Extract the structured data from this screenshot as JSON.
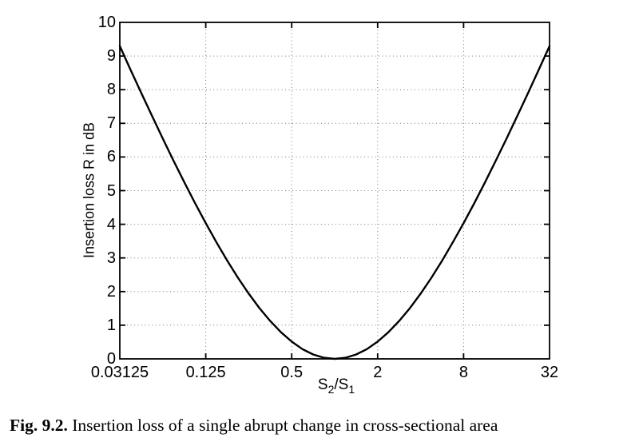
{
  "figure": {
    "caption": {
      "label": "Fig. 9.2.",
      "text": "Insertion loss of a single abrupt change in cross-sectional area"
    }
  },
  "chart_data": {
    "type": "line",
    "title": "",
    "xlabel": "S2/S1",
    "xlabel_parts": {
      "base1": "S",
      "sub1": "2",
      "base2": "/S",
      "sub2": "1"
    },
    "ylabel": "Insertion loss R in dB",
    "x_scale": "log",
    "xlim": [
      0.03125,
      32
    ],
    "ylim": [
      0,
      10
    ],
    "grid": "dotted",
    "x_ticks": [
      {
        "value": 0.03125,
        "label": "0.03125"
      },
      {
        "value": 0.125,
        "label": "0.125"
      },
      {
        "value": 0.5,
        "label": "0.5"
      },
      {
        "value": 2,
        "label": "2"
      },
      {
        "value": 8,
        "label": "8"
      },
      {
        "value": 32,
        "label": "32"
      }
    ],
    "y_ticks": [
      "0",
      "1",
      "2",
      "3",
      "4",
      "5",
      "6",
      "7",
      "8",
      "9",
      "10"
    ],
    "series": [
      {
        "name": "Insertion loss R",
        "color": "#000000",
        "x": [
          0.03125,
          0.03716,
          0.04419,
          0.05256,
          0.0625,
          0.07432,
          0.08839,
          0.10511,
          0.125,
          0.14865,
          0.17678,
          0.21022,
          0.25,
          0.2973,
          0.35355,
          0.42045,
          0.5,
          0.5946,
          0.70711,
          0.8409,
          1,
          1.18921,
          1.41421,
          1.68179,
          2,
          2.37841,
          2.82843,
          3.36359,
          4,
          4.75683,
          5.65685,
          6.72717,
          8,
          9.51366,
          11.31371,
          13.45434,
          16,
          19.02731,
          22.62742,
          26.90868,
          32
        ],
        "y": [
          9.298,
          8.595,
          7.901,
          7.218,
          6.547,
          5.891,
          5.251,
          4.631,
          4.033,
          3.462,
          2.919,
          2.41,
          1.938,
          1.508,
          1.125,
          0.791,
          0.512,
          0.29,
          0.13,
          0.033,
          0,
          0.033,
          0.13,
          0.29,
          0.512,
          0.791,
          1.125,
          1.508,
          1.938,
          2.41,
          2.919,
          3.462,
          4.033,
          4.631,
          5.251,
          5.891,
          6.547,
          7.218,
          7.901,
          8.595,
          9.298
        ]
      }
    ]
  },
  "colors": {
    "background": "#ffffff",
    "axis": "#000000",
    "grid": "#7a7a7a",
    "curve": "#000000"
  }
}
